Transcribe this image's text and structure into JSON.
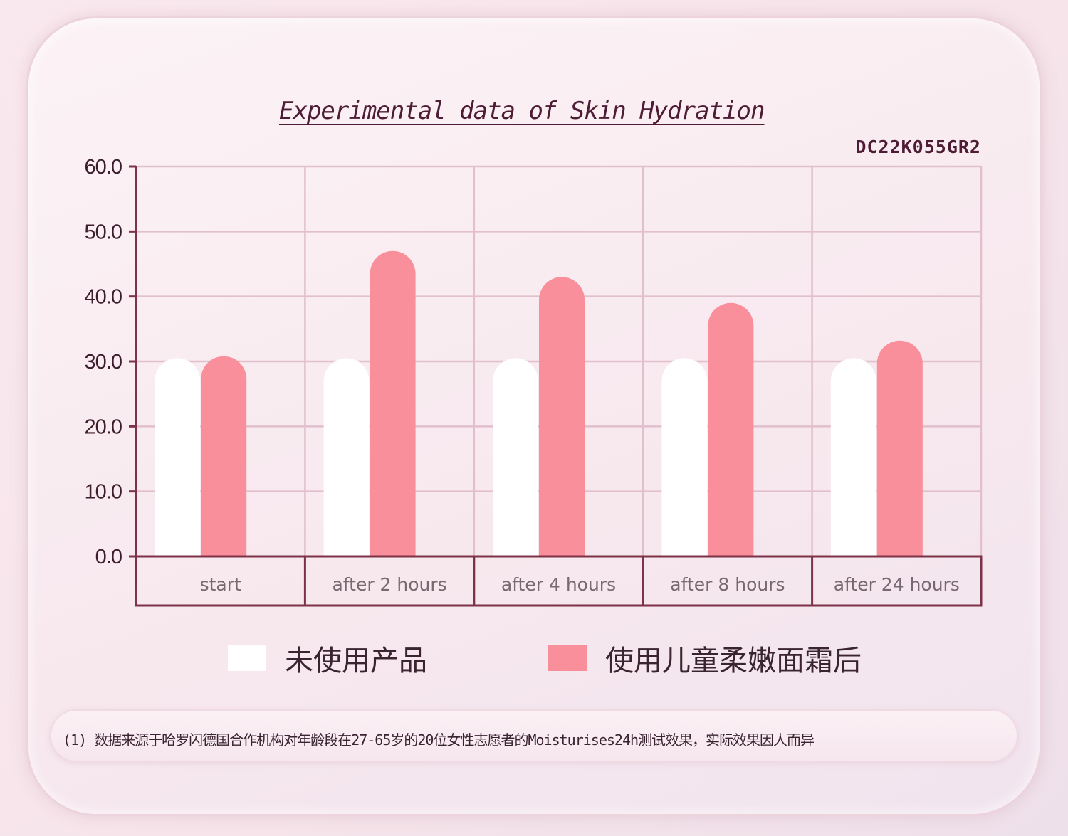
{
  "chart_data": {
    "type": "bar",
    "title": "Experimental data of Skin Hydration",
    "subtitle": "DC22K055GR2",
    "categories": [
      "start",
      "after 2 hours",
      "after 4 hours",
      "after 8 hours",
      "after 24 hours"
    ],
    "series": [
      {
        "name": "未使用产品",
        "color": "#ffffff",
        "values": [
          30.5,
          30.5,
          30.5,
          30.5,
          30.5
        ]
      },
      {
        "name": "使用儿童柔嫩面霜后",
        "color": "#f98f9a",
        "values": [
          30.8,
          47.0,
          43.0,
          39.0,
          33.2
        ]
      }
    ],
    "yticks": [
      "0.0",
      "10.0",
      "20.0",
      "30.0",
      "40.0",
      "50.0",
      "60.0"
    ],
    "ylim": [
      0,
      60
    ],
    "grid": true,
    "legend_position": "bottom"
  },
  "footnote": "(1) 数据来源于哈罗闪德国合作机构对年龄段在27-65岁的20位女性志愿者的Moisturises24h测试效果，实际效果因人而异",
  "colors": {
    "axis": "#7d3248",
    "grid": "#e1bfcc",
    "text": "#4e1d35"
  }
}
